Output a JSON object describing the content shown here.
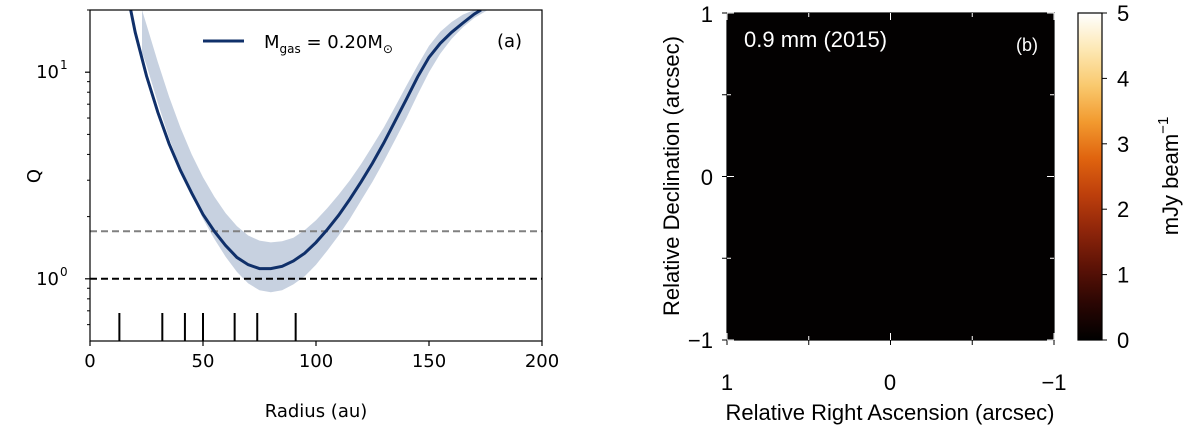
{
  "chart_data": [
    {
      "type": "line",
      "panel_label": "(a)",
      "xlabel": "Radius (au)",
      "ylabel": "Q",
      "xlim": [
        0,
        200
      ],
      "ylim": [
        0.5,
        20
      ],
      "yscale": "log",
      "xticks": [
        0,
        50,
        100,
        150,
        200
      ],
      "yticks": [
        {
          "value": 1,
          "base": "10",
          "exp": "0"
        },
        {
          "value": 10,
          "base": "10",
          "exp": "1"
        }
      ],
      "legend": {
        "position": "top",
        "parts": [
          "M",
          "gas",
          " = 0.20M",
          "⊙"
        ]
      },
      "series": [
        {
          "name": "M_gas = 0.20 M_sun",
          "color": "#10306a",
          "x": [
            18,
            20,
            25,
            30,
            35,
            40,
            45,
            50,
            55,
            60,
            65,
            70,
            75,
            80,
            85,
            90,
            95,
            100,
            105,
            110,
            115,
            120,
            125,
            130,
            135,
            140,
            145,
            150,
            155,
            160,
            165,
            170,
            173
          ],
          "y": [
            20.0,
            15.6,
            9.6,
            6.4,
            4.5,
            3.35,
            2.6,
            2.05,
            1.7,
            1.45,
            1.27,
            1.17,
            1.12,
            1.12,
            1.15,
            1.22,
            1.33,
            1.5,
            1.73,
            2.03,
            2.43,
            2.95,
            3.63,
            4.55,
            5.8,
            7.4,
            9.5,
            11.8,
            13.8,
            15.6,
            17.3,
            19.1,
            20.0
          ]
        }
      ],
      "band": {
        "color": "#c7d1e0",
        "x": [
          23,
          25,
          30,
          35,
          40,
          45,
          50,
          55,
          60,
          65,
          70,
          75,
          80,
          85,
          90,
          95,
          100,
          105,
          110,
          115,
          120,
          125,
          130,
          135,
          140,
          145,
          150,
          155,
          160,
          165,
          170,
          176
        ],
        "upper": [
          20.0,
          17.0,
          11.2,
          7.6,
          5.4,
          4.0,
          3.1,
          2.5,
          2.08,
          1.8,
          1.62,
          1.53,
          1.5,
          1.52,
          1.58,
          1.72,
          1.92,
          2.2,
          2.55,
          3.0,
          3.6,
          4.4,
          5.4,
          6.8,
          8.6,
          10.8,
          13.4,
          15.7,
          17.5,
          19.0,
          20.0,
          20.0
        ],
        "lower": [
          12.5,
          10.8,
          7.1,
          4.8,
          3.45,
          2.55,
          1.95,
          1.56,
          1.28,
          1.08,
          0.95,
          0.88,
          0.86,
          0.88,
          0.94,
          1.03,
          1.17,
          1.37,
          1.62,
          1.95,
          2.4,
          2.95,
          3.7,
          4.7,
          6.0,
          7.8,
          10.0,
          12.3,
          14.5,
          16.5,
          18.3,
          20.0
        ]
      },
      "hlines": [
        {
          "y": 1.7,
          "color": "#808080",
          "style": "dashed"
        },
        {
          "y": 1.0,
          "color": "#000000",
          "style": "dashed"
        }
      ],
      "ring_markers": {
        "x": [
          13,
          32,
          42,
          50,
          64,
          74,
          91
        ],
        "color": "#000000"
      }
    },
    {
      "type": "heatmap",
      "panel_label": "(b)",
      "annotation": "0.9 mm (2015)",
      "xlabel": "Relative Right Ascension (arcsec)",
      "ylabel": "Relative Declination (arcsec)",
      "xlim": [
        1,
        -1
      ],
      "ylim": [
        -1,
        1
      ],
      "xticks": [
        "1",
        "0",
        "−1"
      ],
      "yticks": [
        "1",
        "0",
        "−1"
      ],
      "colorbar": {
        "label": "mJy beam",
        "label_exp": "−1",
        "ticks": [
          "0",
          "1",
          "2",
          "3",
          "4",
          "5"
        ],
        "range": [
          0,
          5
        ],
        "colors": [
          "#000000",
          "#2a0603",
          "#5c1206",
          "#8e250a",
          "#bd3f0c",
          "#e0640f",
          "#f29a2f",
          "#f9c96e",
          "#fde8b4",
          "#ffffff"
        ]
      },
      "disk_colors": [
        "#fff8e6",
        "#ffd780",
        "#f07a14",
        "#c14810",
        "#3a0c05",
        "#0b0302"
      ],
      "regions": [
        {
          "name": "inner-ellipse",
          "color": "#3c6ea8"
        },
        {
          "name": "outer-ellipse",
          "color": "#3c6ea8"
        }
      ]
    }
  ]
}
